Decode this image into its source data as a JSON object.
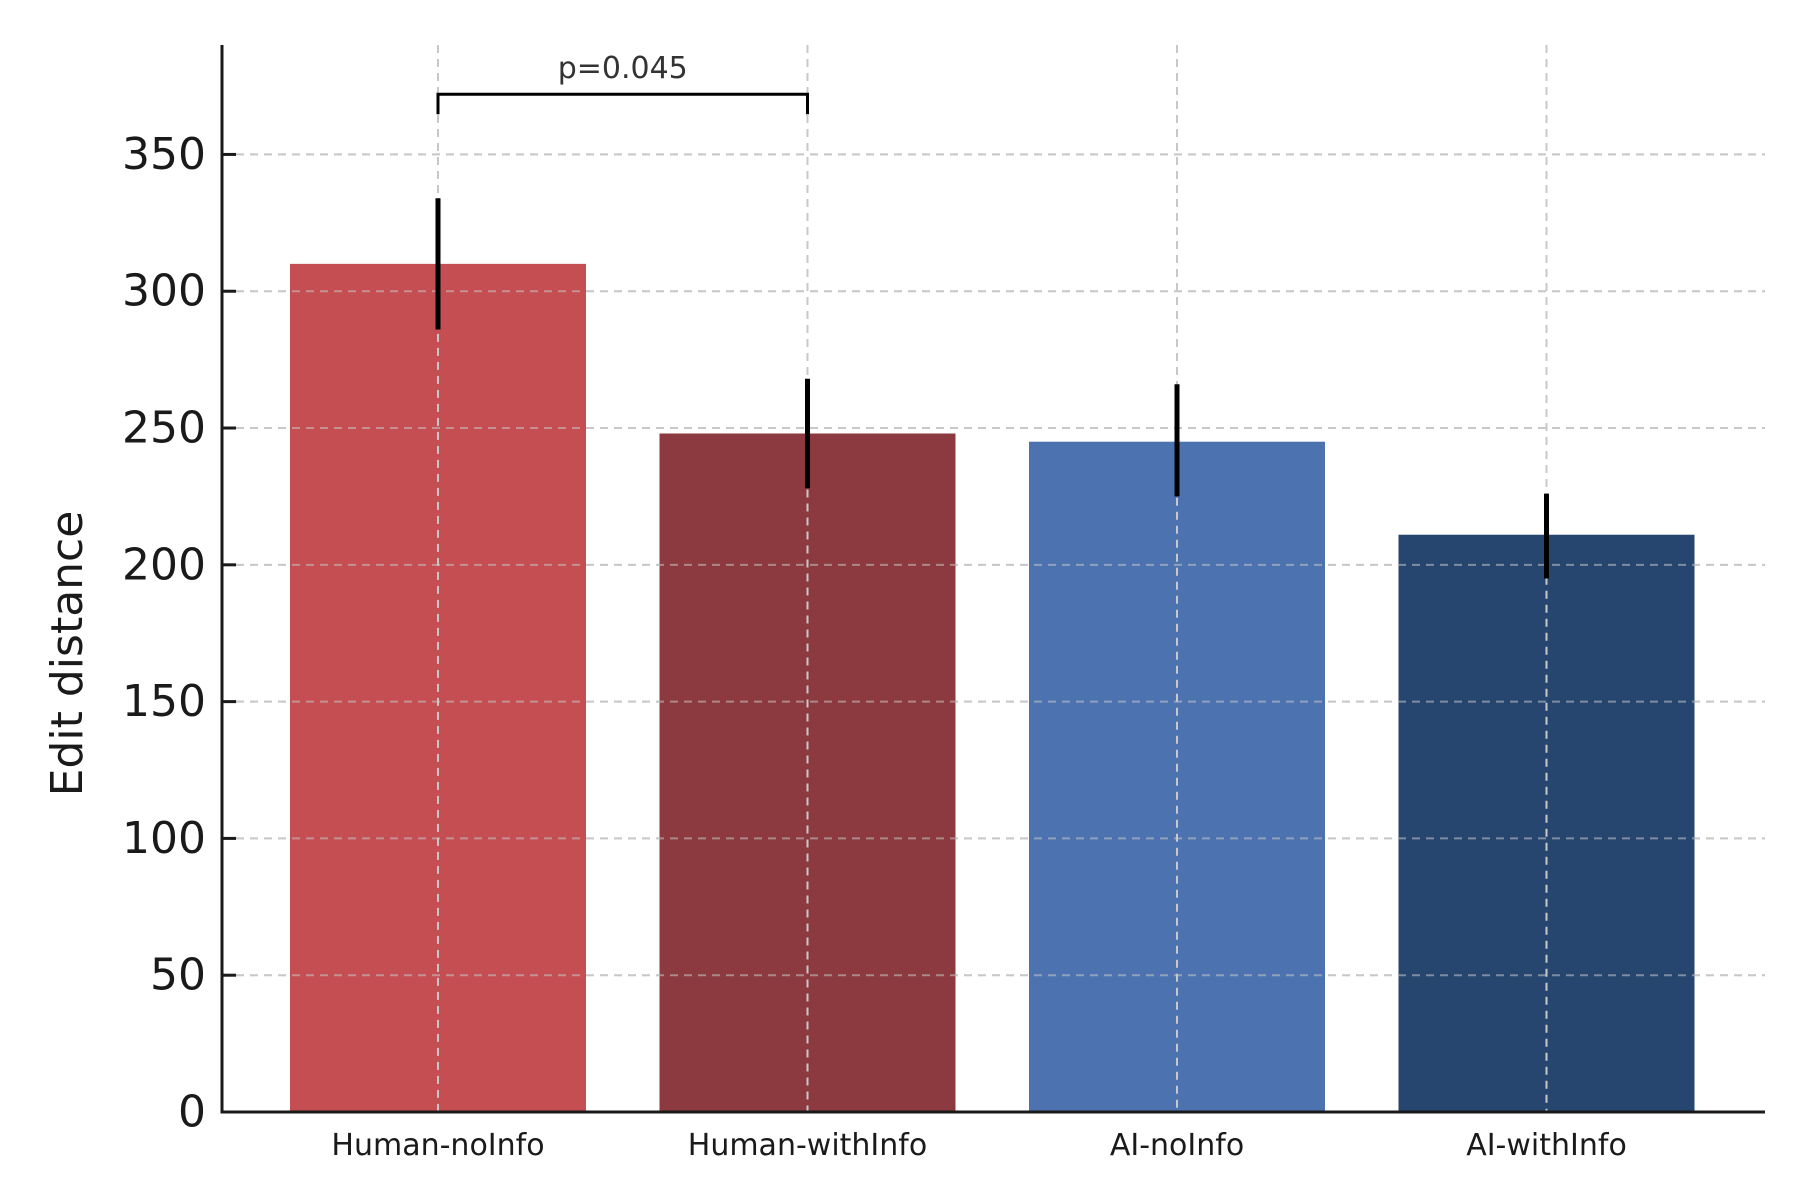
{
  "chart_data": {
    "type": "bar",
    "title": "",
    "xlabel": "",
    "ylabel": "Edit distance",
    "ylim": [
      0,
      390
    ],
    "yticks": [
      0,
      50,
      100,
      150,
      200,
      250,
      300,
      350
    ],
    "categories": [
      "Human-noInfo",
      "Human-withInfo",
      "AI-noInfo",
      "AI-withInfo"
    ],
    "values": [
      310,
      248,
      245,
      211
    ],
    "error_low": [
      286,
      228,
      225,
      195
    ],
    "error_high": [
      334,
      268,
      266,
      226
    ],
    "colors": [
      "#c44e52",
      "#8c3a3f",
      "#4c72b0",
      "#26466f"
    ],
    "grid": true,
    "annotations": [
      {
        "type": "significance-bracket",
        "from": "Human-noInfo",
        "to": "Human-withInfo",
        "label": "p=0.045",
        "y": 372
      }
    ]
  }
}
